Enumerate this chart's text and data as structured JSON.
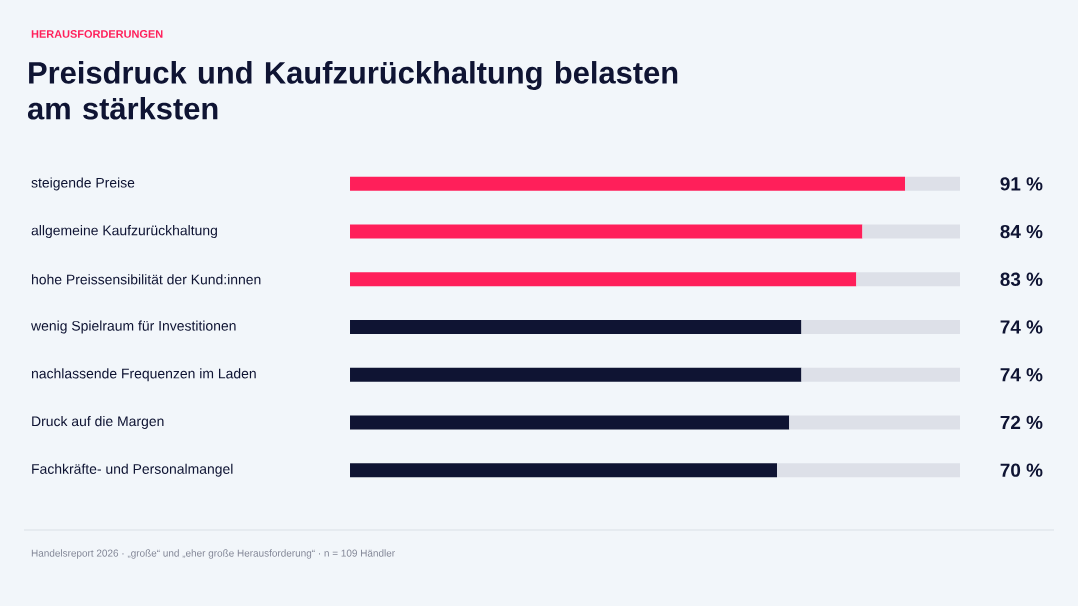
{
  "chart_data": {
    "type": "bar",
    "orientation": "horizontal",
    "stacked": true,
    "subtitle": "HERAUSFORDERUNGEN",
    "title": "Preisdruck und Kaufzurückhaltung belasten am stärksten",
    "categories": [
      "steigende Preise",
      "allgemeine Kaufzurückhaltung",
      "hohe Preissensibilität der Kund:innen",
      "wenig Spielraum für Investitionen",
      "nachlassende Frequenzen im Laden",
      "Druck auf die Margen",
      "Fachkräfte- und Personalmangel"
    ],
    "xlim": [
      0,
      100
    ],
    "series": [
      {
        "colors": [
          "#ff1f5a",
          "#ff1f5a",
          "#ff1f5a",
          "#0f1433",
          "#0f1433",
          "#0f1433",
          "#0f1433"
        ],
        "values": [
          91,
          84,
          83,
          74,
          74,
          72,
          70
        ],
        "value_labels": [
          "91 %",
          "84 %",
          "83 %",
          "74 %",
          "74 %",
          "72 %",
          "70 %"
        ]
      },
      {
        "color": "#dde0e8",
        "values": [
          9,
          16,
          17,
          26,
          26,
          28,
          30
        ]
      }
    ],
    "annotations": [
      "Handelsreport 2026 · „große“ und „eher große Herausforderung“ · n = 109 Händler"
    ]
  }
}
